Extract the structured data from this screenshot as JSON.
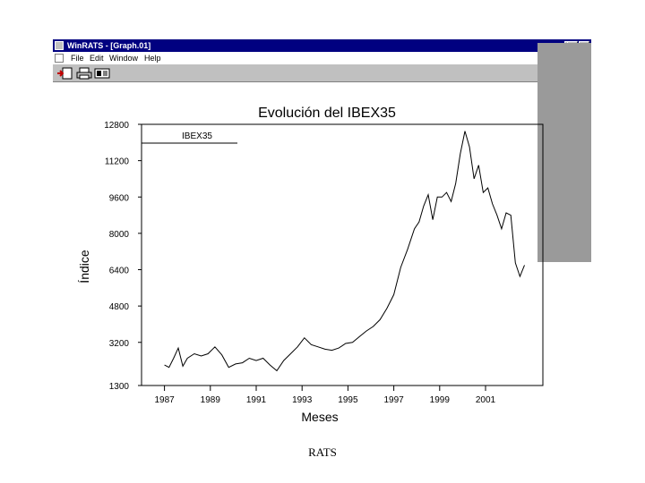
{
  "window": {
    "title": "WinRATS - [Graph.01]",
    "controls": [
      "_",
      "▫",
      "×"
    ]
  },
  "menu": {
    "items": [
      "File",
      "Edit",
      "Window",
      "Help"
    ]
  },
  "toolbar": {
    "icons": [
      "open-icon",
      "print-icon",
      "copy-icon"
    ]
  },
  "colors": {
    "titlebar": "#000080",
    "chrome": "#c0c0c0",
    "line": "#000000"
  },
  "chart_data": {
    "type": "line",
    "title": "Evolución del IBEX35",
    "xlabel": "Meses",
    "ylabel": "Índice",
    "legend": {
      "label": "IBEX35",
      "placement": "top-left"
    },
    "ylim": [
      1300,
      12800
    ],
    "yticks": [
      1300,
      3200,
      4800,
      6400,
      8000,
      9600,
      11200,
      12800
    ],
    "ytick_labels": [
      "1300",
      "3200",
      "4800",
      "6400",
      "8000",
      "9600",
      "11200",
      "12800"
    ],
    "xlim": [
      1986.0,
      2003.5
    ],
    "xticks": [
      1987,
      1989,
      1991,
      1993,
      1995,
      1997,
      1999,
      2001
    ],
    "xtick_labels": [
      "1987",
      "1989",
      "1991",
      "1993",
      "1995",
      "1997",
      "1999",
      "2001"
    ],
    "grid": false,
    "series": [
      {
        "name": "IBEX35",
        "x": [
          1987.0,
          1987.2,
          1987.4,
          1987.6,
          1987.8,
          1988.0,
          1988.3,
          1988.6,
          1988.9,
          1989.2,
          1989.5,
          1989.8,
          1990.1,
          1990.4,
          1990.7,
          1991.0,
          1991.3,
          1991.6,
          1991.9,
          1992.2,
          1992.5,
          1992.8,
          1993.1,
          1993.4,
          1993.7,
          1994.0,
          1994.3,
          1994.6,
          1994.9,
          1995.2,
          1995.5,
          1995.8,
          1996.1,
          1996.4,
          1996.7,
          1997.0,
          1997.3,
          1997.6,
          1997.9,
          1998.1,
          1998.3,
          1998.5,
          1998.7,
          1998.9,
          1999.1,
          1999.3,
          1999.5,
          1999.7,
          1999.9,
          2000.1,
          2000.3,
          2000.5,
          2000.7,
          2000.9,
          2001.1,
          2001.3,
          2001.5,
          2001.7,
          2001.9,
          2002.1,
          2002.3,
          2002.5,
          2002.7
        ],
        "values": [
          2200,
          2100,
          2500,
          2950,
          2150,
          2500,
          2700,
          2600,
          2700,
          3000,
          2650,
          2100,
          2250,
          2300,
          2500,
          2400,
          2500,
          2200,
          1950,
          2400,
          2700,
          3000,
          3400,
          3100,
          3000,
          2900,
          2850,
          2950,
          3150,
          3200,
          3450,
          3700,
          3900,
          4200,
          4700,
          5300,
          6500,
          7300,
          8200,
          8500,
          9200,
          9700,
          8600,
          9600,
          9600,
          9800,
          9400,
          10200,
          11500,
          12500,
          11800,
          10400,
          11000,
          9800,
          10000,
          9300,
          8800,
          8200,
          8900,
          8800,
          6700,
          6100,
          6600
        ]
      }
    ]
  },
  "footer": {
    "text": "RATS"
  }
}
